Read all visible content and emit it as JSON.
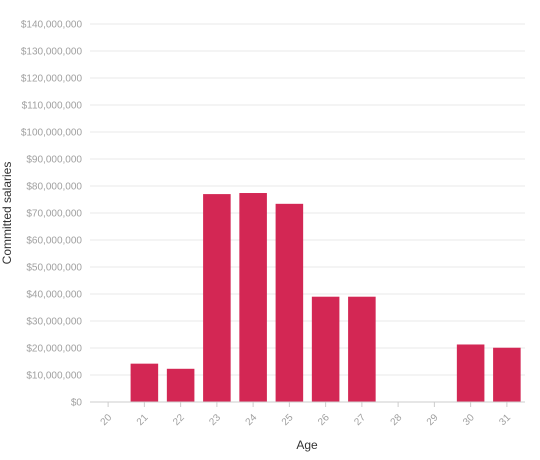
{
  "chart_data": {
    "type": "bar",
    "xlabel": "Age",
    "ylabel": "Committed salaries",
    "categories": [
      "20",
      "21",
      "22",
      "23",
      "24",
      "25",
      "26",
      "27",
      "28",
      "29",
      "30",
      "31"
    ],
    "values": [
      0,
      14200000,
      12300000,
      77000000,
      77400000,
      73400000,
      39000000,
      39000000,
      0,
      0,
      21300000,
      20100000
    ],
    "ylim": [
      0,
      140000000
    ],
    "yticks": [
      0,
      10000000,
      20000000,
      30000000,
      40000000,
      50000000,
      60000000,
      70000000,
      80000000,
      90000000,
      100000000,
      110000000,
      120000000,
      130000000,
      140000000
    ],
    "ytick_labels": [
      "$0",
      "$10,000,000",
      "$20,000,000",
      "$30,000,000",
      "$40,000,000",
      "$50,000,000",
      "$60,000,000",
      "$70,000,000",
      "$80,000,000",
      "$90,000,000",
      "$100,000,000",
      "$110,000,000",
      "$120,000,000",
      "$130,000,000",
      "$140,000,000"
    ],
    "grid": true,
    "legend": "none",
    "colors": {
      "bar": "#d32754",
      "grid": "#e8e8e8",
      "axis": "#cccccc",
      "tick_text": "#a0a0a0",
      "title_text": "#333333"
    }
  }
}
